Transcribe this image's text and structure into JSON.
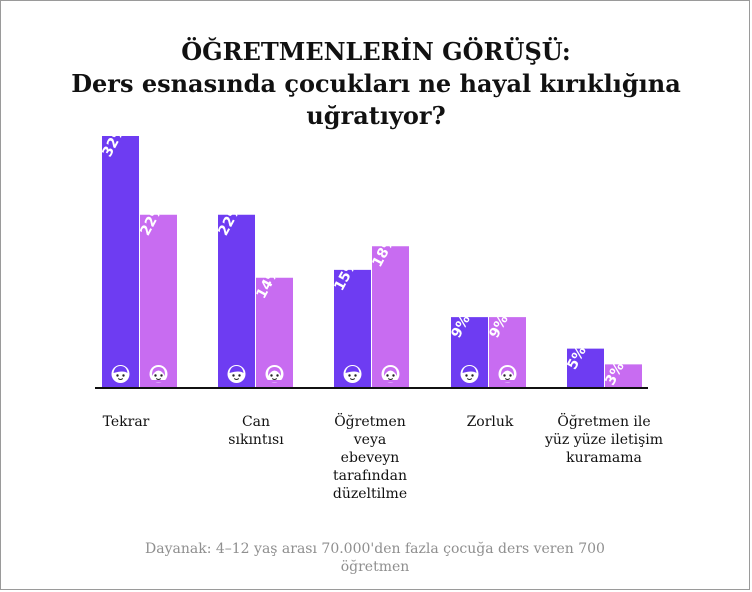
{
  "title": {
    "line1": "ÖĞRETMENLERİN GÖRÜŞÜ:",
    "line2": "Ders esnasında çocukları ne hayal kırıklığına",
    "line3": "uğratıyor?"
  },
  "source_note": "Dayanak: 4–12 yaş arası 70.000'den fazla çocuğa ders veren 700 öğretmen",
  "colors": {
    "boy_bar": "#6e3cf2",
    "girl_bar": "#c86cf1",
    "axis": "#111111",
    "title_text": "#111111",
    "source_text": "#8f8f8f"
  },
  "icons": [
    "boy-face-icon",
    "girl-face-icon"
  ],
  "chart_data": {
    "type": "bar",
    "title": "ÖĞRETMENLERİN GÖRÜŞÜ: Ders esnasında çocukları ne hayal kırıklığına uğratıyor?",
    "categories": [
      [
        "Tekrar"
      ],
      [
        "Can",
        "sıkıntısı"
      ],
      [
        "Öğretmen",
        "veya",
        "ebeveyn",
        "tarafından",
        "düzeltilme"
      ],
      [
        "Zorluk"
      ],
      [
        "Öğretmen ile",
        "yüz yüze iletişim",
        "kuramama"
      ]
    ],
    "series": [
      {
        "values": [
          32,
          22,
          15,
          9,
          5
        ],
        "labels": [
          "32%",
          "22%",
          "15%",
          "9%",
          "5%"
        ],
        "color": "#6e3cf2",
        "icon": "boy-face-icon"
      },
      {
        "values": [
          22,
          14,
          18,
          9,
          3
        ],
        "labels": [
          "22%",
          "14%",
          "18%",
          "9%",
          "3%"
        ],
        "color": "#c86cf1",
        "icon": "girl-face-icon"
      }
    ],
    "show_icons": [
      true,
      true,
      true,
      true,
      false
    ],
    "ylim": [
      0,
      32
    ],
    "xlabel": "",
    "ylabel": "",
    "grid": false,
    "legend": "none"
  }
}
